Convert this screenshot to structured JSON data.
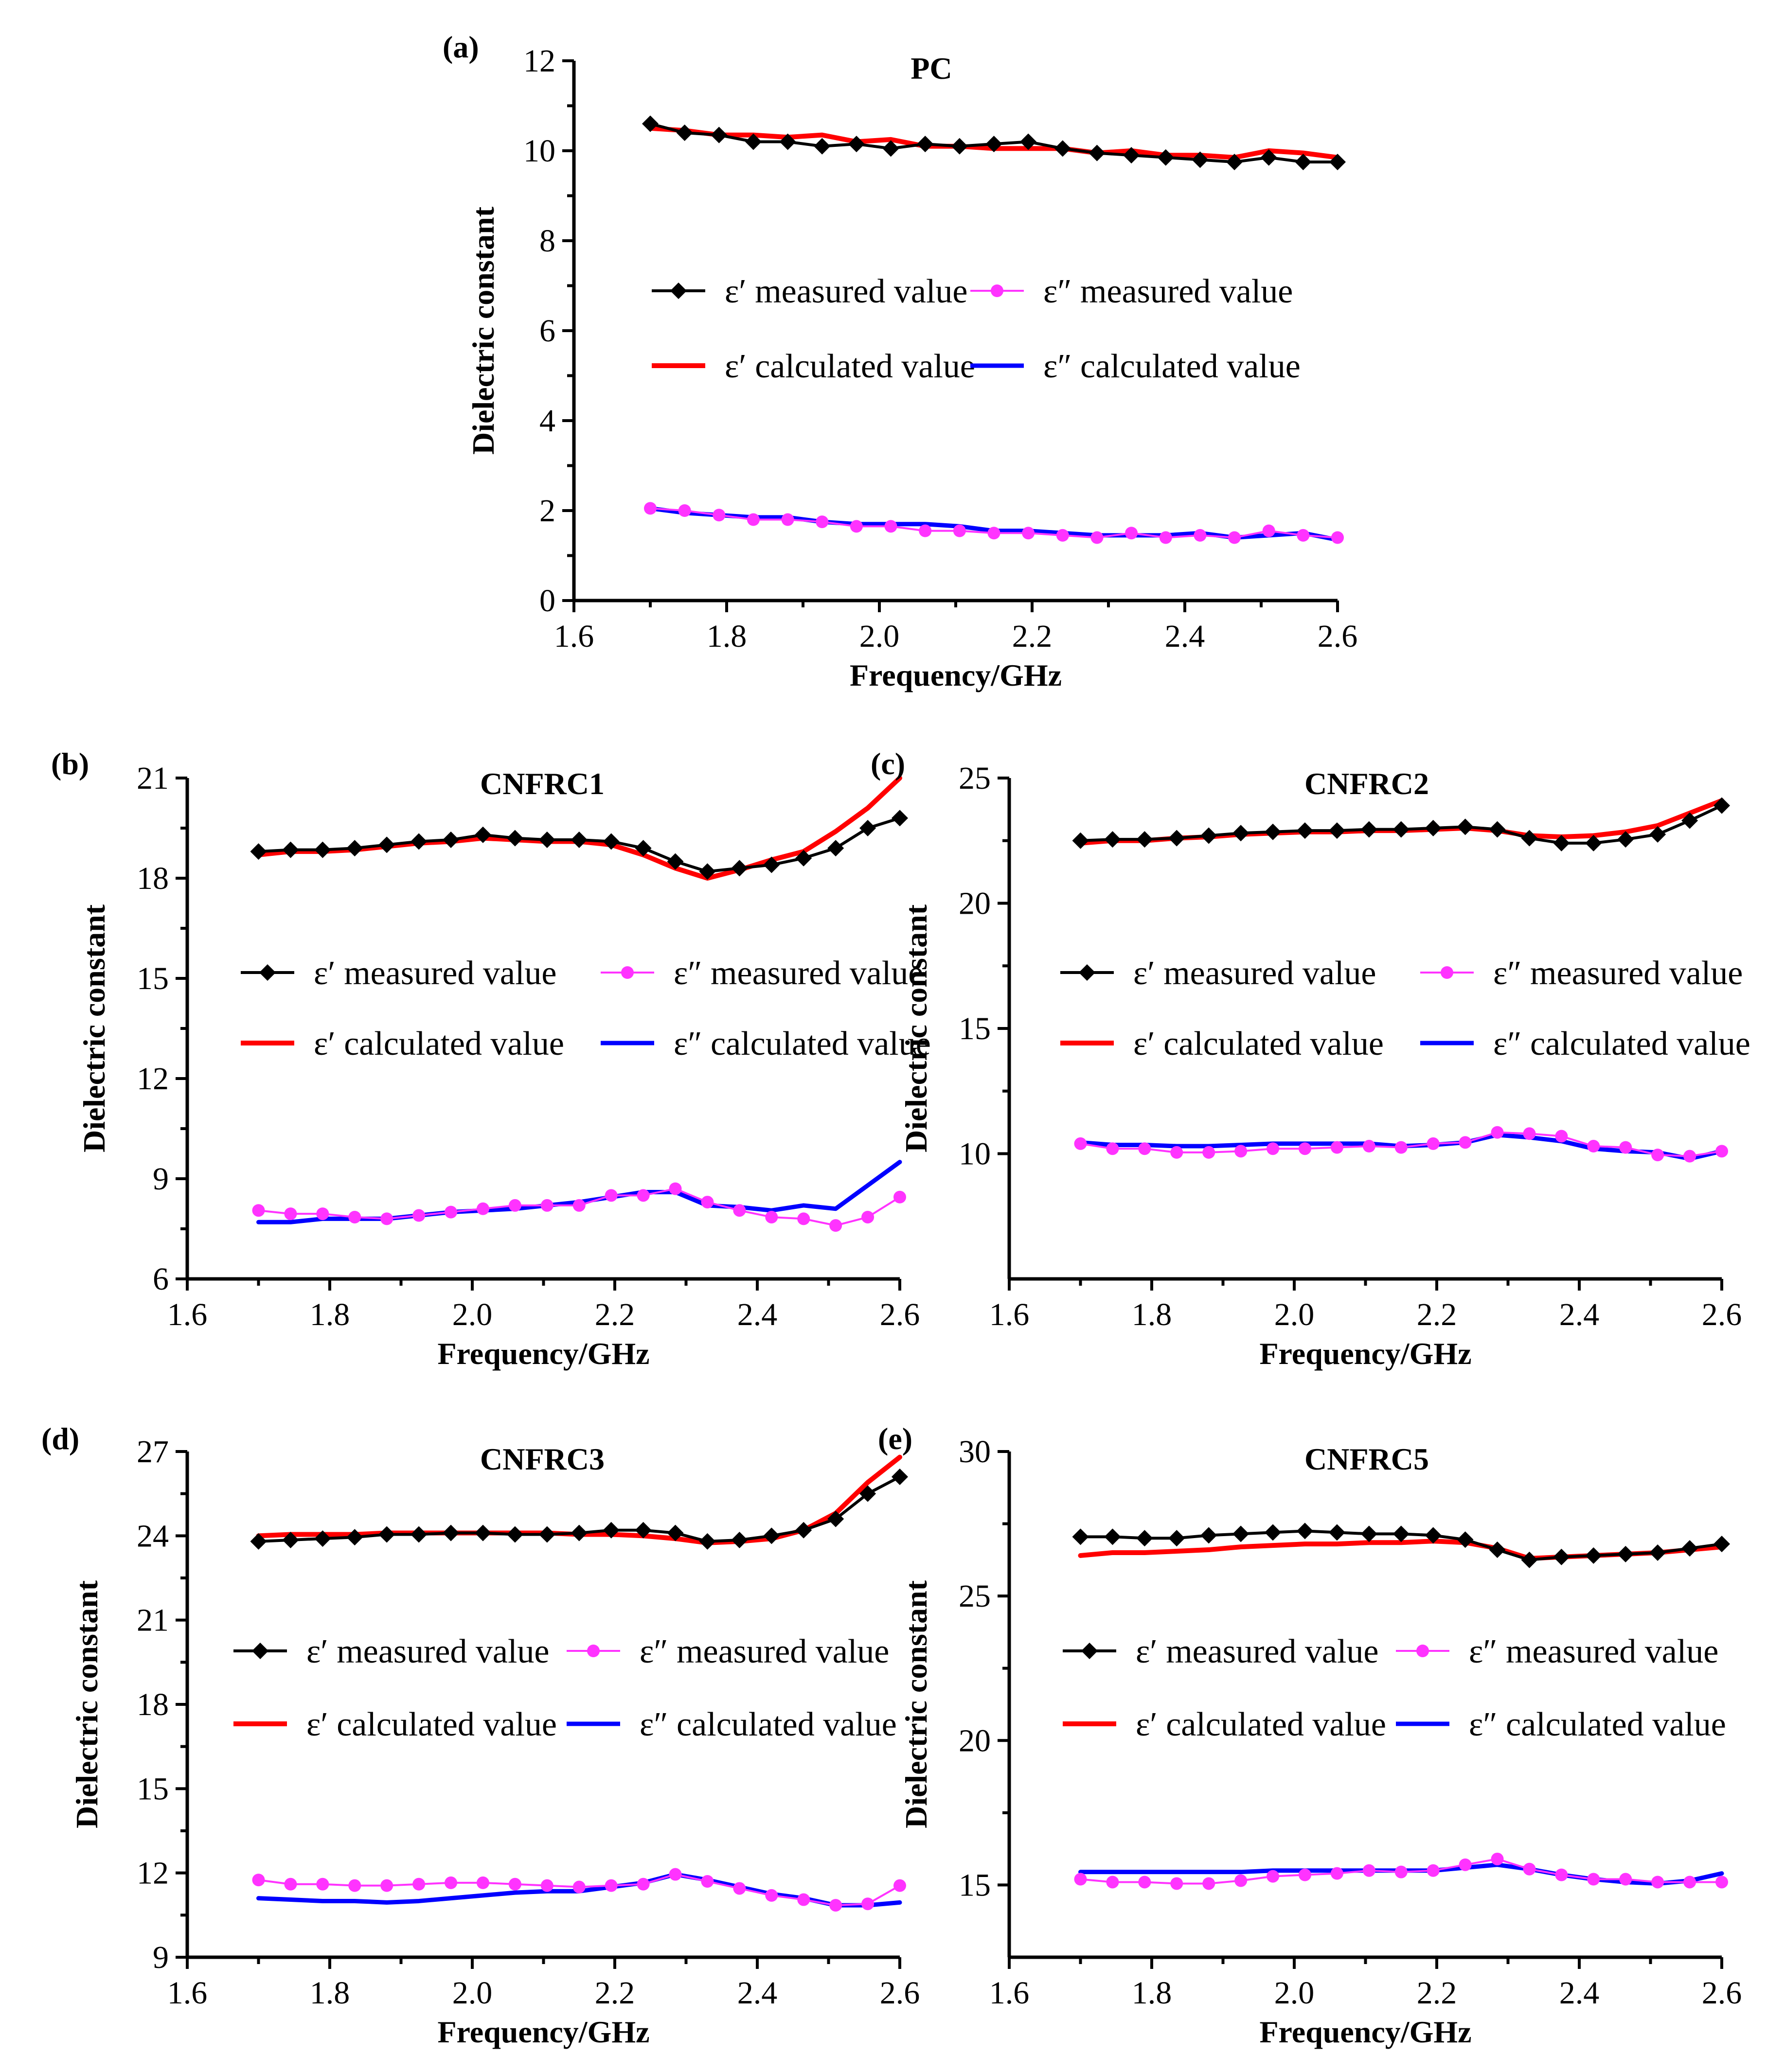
{
  "figure": {
    "legend_labels": {
      "meas_real": "ε′ measured value",
      "meas_imag": "ε″ measured value",
      "calc_real": "ε′ calculated value",
      "calc_imag": "ε″ calculated value"
    }
  },
  "colors": {
    "meas_real": "#000000",
    "meas_imag": "#ff33ff",
    "calc_real": "#ff0000",
    "calc_imag": "#0000ff"
  },
  "chart_data": [
    {
      "id": "a",
      "panel_label": "(a)",
      "type": "line",
      "title": "PC",
      "xlabel": "Frequency/GHz",
      "ylabel": "Dielectric constant",
      "xlim": [
        1.6,
        2.6
      ],
      "ylim": [
        0,
        12
      ],
      "xticks": [
        1.6,
        1.8,
        2.0,
        2.2,
        2.4,
        2.6
      ],
      "yticks": [
        0,
        2,
        4,
        6,
        8,
        10,
        12
      ],
      "xticklabels": [
        "1.6",
        "1.8",
        "2.0",
        "2.2",
        "2.4",
        "2.6"
      ],
      "yticklabels": [
        "0",
        "2",
        "4",
        "6",
        "8",
        "10",
        "12"
      ],
      "x": [
        1.7,
        1.745,
        1.79,
        1.835,
        1.88,
        1.925,
        1.97,
        2.015,
        2.06,
        2.105,
        2.15,
        2.195,
        2.24,
        2.285,
        2.33,
        2.375,
        2.42,
        2.465,
        2.51,
        2.555,
        2.6
      ],
      "series": [
        {
          "name": "ε′ measured value",
          "values": [
            10.6,
            10.4,
            10.35,
            10.2,
            10.2,
            10.1,
            10.15,
            10.05,
            10.15,
            10.1,
            10.15,
            10.2,
            10.05,
            9.95,
            9.9,
            9.85,
            9.8,
            9.75,
            9.85,
            9.75,
            9.75
          ]
        },
        {
          "name": "ε′ calculated value",
          "values": [
            10.5,
            10.45,
            10.35,
            10.35,
            10.3,
            10.35,
            10.2,
            10.25,
            10.1,
            10.1,
            10.05,
            10.05,
            10.05,
            9.95,
            10.0,
            9.9,
            9.9,
            9.85,
            10.0,
            9.95,
            9.85
          ]
        },
        {
          "name": "ε″ measured value",
          "values": [
            2.05,
            2.0,
            1.9,
            1.8,
            1.8,
            1.75,
            1.65,
            1.65,
            1.55,
            1.55,
            1.5,
            1.5,
            1.45,
            1.4,
            1.5,
            1.4,
            1.45,
            1.4,
            1.55,
            1.45,
            1.4
          ]
        },
        {
          "name": "ε″ calculated value",
          "values": [
            2.05,
            1.95,
            1.9,
            1.85,
            1.85,
            1.75,
            1.7,
            1.7,
            1.7,
            1.65,
            1.55,
            1.55,
            1.5,
            1.45,
            1.45,
            1.45,
            1.5,
            1.4,
            1.45,
            1.5,
            1.35
          ]
        }
      ]
    },
    {
      "id": "b",
      "panel_label": "(b)",
      "type": "line",
      "title": "CNFRC1",
      "xlabel": "Frequency/GHz",
      "ylabel": "Dielectric constant",
      "xlim": [
        1.6,
        2.6
      ],
      "ylim": [
        6,
        21
      ],
      "xticks": [
        1.6,
        1.8,
        2.0,
        2.2,
        2.4,
        2.6
      ],
      "yticks": [
        6,
        9,
        12,
        15,
        18,
        21
      ],
      "xticklabels": [
        "1.6",
        "1.8",
        "2.0",
        "2.2",
        "2.4",
        "2.6"
      ],
      "yticklabels": [
        "6",
        "9",
        "12",
        "15",
        "18",
        "21"
      ],
      "x": [
        1.7,
        1.745,
        1.79,
        1.835,
        1.88,
        1.925,
        1.97,
        2.015,
        2.06,
        2.105,
        2.15,
        2.195,
        2.24,
        2.285,
        2.33,
        2.375,
        2.42,
        2.465,
        2.51,
        2.555,
        2.6
      ],
      "series": [
        {
          "name": "ε′ measured value",
          "values": [
            18.8,
            18.85,
            18.85,
            18.9,
            19.0,
            19.1,
            19.15,
            19.3,
            19.2,
            19.15,
            19.15,
            19.1,
            18.9,
            18.5,
            18.2,
            18.3,
            18.4,
            18.6,
            18.9,
            19.5,
            19.8
          ]
        },
        {
          "name": "ε′ calculated value",
          "values": [
            18.7,
            18.8,
            18.8,
            18.85,
            18.95,
            19.05,
            19.1,
            19.2,
            19.15,
            19.1,
            19.1,
            19.0,
            18.7,
            18.3,
            18.0,
            18.25,
            18.55,
            18.8,
            19.4,
            20.1,
            21.0
          ]
        },
        {
          "name": "ε″ measured value",
          "values": [
            8.05,
            7.95,
            7.95,
            7.85,
            7.8,
            7.9,
            8.0,
            8.1,
            8.2,
            8.2,
            8.2,
            8.5,
            8.5,
            8.7,
            8.3,
            8.05,
            7.85,
            7.8,
            7.6,
            7.85,
            8.45
          ]
        },
        {
          "name": "ε″ calculated value",
          "values": [
            7.7,
            7.7,
            7.8,
            7.8,
            7.8,
            7.9,
            8.0,
            8.05,
            8.1,
            8.2,
            8.3,
            8.45,
            8.6,
            8.6,
            8.2,
            8.15,
            8.05,
            8.2,
            8.1,
            8.8,
            9.5
          ]
        }
      ]
    },
    {
      "id": "c",
      "panel_label": "(c)",
      "type": "line",
      "title": "CNFRC2",
      "xlabel": "Frequency/GHz",
      "ylabel": "Dielectric constant",
      "xlim": [
        1.6,
        2.6
      ],
      "ylim": [
        5,
        25
      ],
      "xticks": [
        1.6,
        1.8,
        2.0,
        2.2,
        2.4,
        2.6
      ],
      "yticks": [
        10,
        15,
        20,
        25
      ],
      "xticklabels": [
        "1.6",
        "1.8",
        "2.0",
        "2.2",
        "2.4",
        "2.6"
      ],
      "yticklabels": [
        "10",
        "15",
        "20",
        "25"
      ],
      "x": [
        1.7,
        1.745,
        1.79,
        1.835,
        1.88,
        1.925,
        1.97,
        2.015,
        2.06,
        2.105,
        2.15,
        2.195,
        2.24,
        2.285,
        2.33,
        2.375,
        2.42,
        2.465,
        2.51,
        2.555,
        2.6
      ],
      "series": [
        {
          "name": "ε′ measured value",
          "values": [
            22.5,
            22.55,
            22.55,
            22.6,
            22.7,
            22.8,
            22.85,
            22.9,
            22.9,
            22.95,
            22.95,
            23.0,
            23.05,
            22.95,
            22.6,
            22.4,
            22.4,
            22.55,
            22.75,
            23.3,
            23.9
          ]
        },
        {
          "name": "ε′ calculated value",
          "values": [
            22.4,
            22.5,
            22.5,
            22.6,
            22.65,
            22.75,
            22.8,
            22.85,
            22.85,
            22.9,
            22.9,
            22.95,
            23.0,
            22.9,
            22.7,
            22.65,
            22.7,
            22.85,
            23.1,
            23.6,
            24.1
          ]
        },
        {
          "name": "ε″ measured value",
          "values": [
            10.4,
            10.2,
            10.2,
            10.05,
            10.05,
            10.1,
            10.2,
            10.2,
            10.25,
            10.3,
            10.25,
            10.4,
            10.45,
            10.85,
            10.8,
            10.7,
            10.3,
            10.25,
            9.95,
            9.9,
            10.1
          ]
        },
        {
          "name": "ε″ calculated value",
          "values": [
            10.45,
            10.35,
            10.35,
            10.3,
            10.3,
            10.35,
            10.4,
            10.4,
            10.4,
            10.4,
            10.3,
            10.35,
            10.45,
            10.75,
            10.65,
            10.5,
            10.2,
            10.1,
            10.05,
            9.8,
            10.1
          ]
        }
      ]
    },
    {
      "id": "d",
      "panel_label": "(d)",
      "type": "line",
      "title": "CNFRC3",
      "xlabel": "Frequency/GHz",
      "ylabel": "Dielectric constant",
      "xlim": [
        1.6,
        2.6
      ],
      "ylim": [
        9,
        27
      ],
      "xticks": [
        1.6,
        1.8,
        2.0,
        2.2,
        2.4,
        2.6
      ],
      "yticks": [
        9,
        12,
        15,
        18,
        21,
        24,
        27
      ],
      "xticklabels": [
        "1.6",
        "1.8",
        "2.0",
        "2.2",
        "2.4",
        "2.6"
      ],
      "yticklabels": [
        "9",
        "12",
        "15",
        "18",
        "21",
        "24",
        "27"
      ],
      "x": [
        1.7,
        1.745,
        1.79,
        1.835,
        1.88,
        1.925,
        1.97,
        2.015,
        2.06,
        2.105,
        2.15,
        2.195,
        2.24,
        2.285,
        2.33,
        2.375,
        2.42,
        2.465,
        2.51,
        2.555,
        2.6
      ],
      "series": [
        {
          "name": "ε′ measured value",
          "values": [
            23.8,
            23.85,
            23.9,
            23.95,
            24.05,
            24.05,
            24.1,
            24.1,
            24.05,
            24.05,
            24.1,
            24.2,
            24.2,
            24.1,
            23.8,
            23.85,
            24.0,
            24.2,
            24.6,
            25.5,
            26.1
          ]
        },
        {
          "name": "ε′ calculated value",
          "values": [
            24.0,
            24.05,
            24.05,
            24.05,
            24.1,
            24.1,
            24.1,
            24.1,
            24.1,
            24.1,
            24.05,
            24.05,
            24.0,
            23.9,
            23.75,
            23.8,
            23.9,
            24.2,
            24.8,
            25.9,
            26.8
          ]
        },
        {
          "name": "ε″ measured value",
          "values": [
            11.75,
            11.6,
            11.6,
            11.55,
            11.55,
            11.6,
            11.65,
            11.65,
            11.6,
            11.55,
            11.5,
            11.55,
            11.6,
            11.95,
            11.7,
            11.45,
            11.2,
            11.05,
            10.85,
            10.9,
            11.55
          ]
        },
        {
          "name": "ε″ calculated value",
          "values": [
            11.1,
            11.05,
            11.0,
            11.0,
            10.95,
            11.0,
            11.1,
            11.2,
            11.3,
            11.35,
            11.35,
            11.5,
            11.65,
            11.95,
            11.75,
            11.5,
            11.25,
            11.1,
            10.85,
            10.85,
            10.95
          ]
        }
      ]
    },
    {
      "id": "e",
      "panel_label": "(e)",
      "type": "line",
      "title": "CNFRC5",
      "xlabel": "Frequency/GHz",
      "ylabel": "Dielectric constant",
      "xlim": [
        1.6,
        2.6
      ],
      "ylim": [
        12.5,
        30
      ],
      "xticks": [
        1.6,
        1.8,
        2.0,
        2.2,
        2.4,
        2.6
      ],
      "yticks": [
        15,
        20,
        25,
        30
      ],
      "xticklabels": [
        "1.6",
        "1.8",
        "2.0",
        "2.2",
        "2.4",
        "2.6"
      ],
      "yticklabels": [
        "15",
        "20",
        "25",
        "30"
      ],
      "x": [
        1.7,
        1.745,
        1.79,
        1.835,
        1.88,
        1.925,
        1.97,
        2.015,
        2.06,
        2.105,
        2.15,
        2.195,
        2.24,
        2.285,
        2.33,
        2.375,
        2.42,
        2.465,
        2.51,
        2.555,
        2.6
      ],
      "series": [
        {
          "name": "ε′ measured value",
          "values": [
            27.05,
            27.05,
            27.0,
            27.0,
            27.1,
            27.15,
            27.2,
            27.25,
            27.2,
            27.15,
            27.15,
            27.1,
            26.95,
            26.6,
            26.25,
            26.35,
            26.4,
            26.45,
            26.5,
            26.65,
            26.8
          ]
        },
        {
          "name": "ε′ calculated value",
          "values": [
            26.4,
            26.5,
            26.5,
            26.55,
            26.6,
            26.7,
            26.75,
            26.8,
            26.8,
            26.85,
            26.85,
            26.9,
            26.85,
            26.65,
            26.3,
            26.35,
            26.4,
            26.45,
            26.5,
            26.6,
            26.7
          ]
        },
        {
          "name": "ε″ measured value",
          "values": [
            15.2,
            15.1,
            15.1,
            15.05,
            15.05,
            15.15,
            15.3,
            15.35,
            15.4,
            15.5,
            15.45,
            15.5,
            15.7,
            15.9,
            15.55,
            15.35,
            15.2,
            15.2,
            15.1,
            15.1,
            15.1
          ]
        },
        {
          "name": "ε″ calculated value",
          "values": [
            15.45,
            15.45,
            15.45,
            15.45,
            15.45,
            15.45,
            15.5,
            15.5,
            15.5,
            15.5,
            15.5,
            15.5,
            15.6,
            15.7,
            15.55,
            15.35,
            15.2,
            15.1,
            15.05,
            15.15,
            15.4
          ]
        }
      ]
    }
  ]
}
